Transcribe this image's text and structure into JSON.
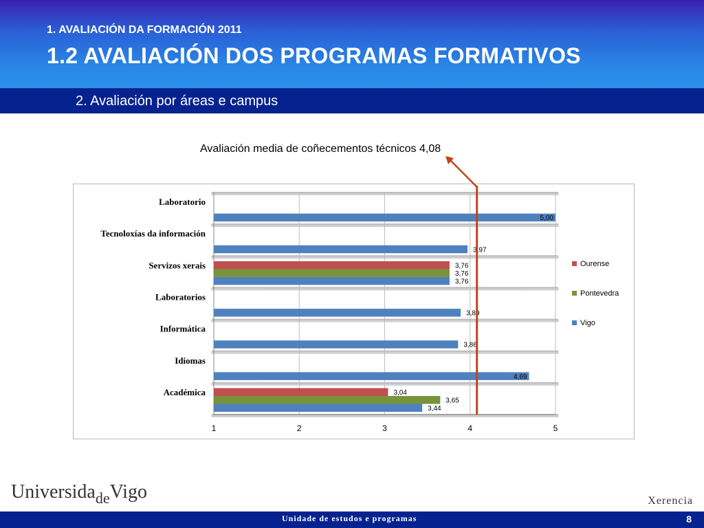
{
  "header": {
    "supertitle": "1. AVALIACIÓN DA FORMACIÓN 2011",
    "title": "1.2 AVALIACIÓN DOS PROGRAMAS FORMATIVOS",
    "subtitle": "2. Avaliación por áreas e campus"
  },
  "annotation": {
    "text": "Avaliación media de coñecementos técnicos 4,08",
    "value": 4.08
  },
  "footer": {
    "logo_part1": "Universida",
    "logo_part2": "de",
    "logo_part3": "Vigo",
    "right_text": "Xerencia",
    "bottom_text": "Unidade de estudos e programas",
    "page_number": "8"
  },
  "colors": {
    "Ourense": "#c0504d",
    "Pontevedra": "#77933c",
    "Vigo": "#4f81bd",
    "reference_line": "#c0441c"
  },
  "chart_data": {
    "type": "bar",
    "orientation": "horizontal",
    "categories": [
      "Laboratorio",
      "Tecnoloxías da información",
      "Servizos xerais",
      "Laboratorios",
      "Informática",
      "Idiomas",
      "Académica"
    ],
    "series": [
      {
        "name": "Ourense",
        "values": [
          null,
          null,
          3.76,
          null,
          null,
          null,
          3.04
        ],
        "labels": [
          null,
          null,
          "3,76",
          null,
          null,
          null,
          "3,04"
        ]
      },
      {
        "name": "Pontevedra",
        "values": [
          null,
          null,
          3.76,
          null,
          null,
          null,
          3.65
        ],
        "labels": [
          null,
          null,
          "3,76",
          null,
          null,
          null,
          "3,65"
        ]
      },
      {
        "name": "Vigo",
        "values": [
          5.0,
          3.97,
          3.76,
          3.89,
          3.86,
          4.69,
          3.44
        ],
        "labels": [
          "5,00",
          "3,97",
          "3,76",
          "3,89",
          "3,86",
          "4,69",
          "3,44"
        ]
      }
    ],
    "xlim": [
      1,
      5
    ],
    "xticks": [
      "1",
      "2",
      "3",
      "4",
      "5"
    ],
    "legend": [
      "Ourense",
      "Pontevedra",
      "Vigo"
    ],
    "legend_position": "right",
    "grid": true,
    "reference_line": 4.08
  }
}
